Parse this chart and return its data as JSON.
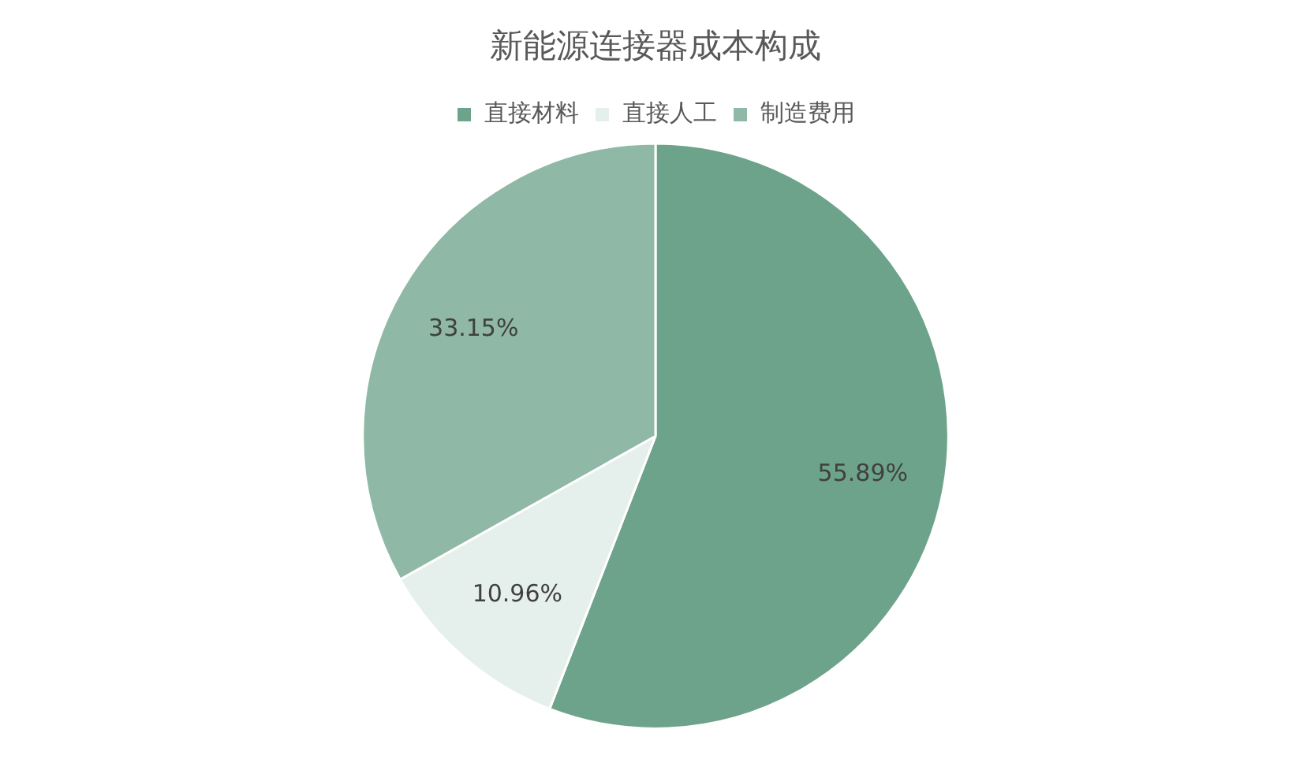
{
  "chart_data": {
    "type": "pie",
    "title": "新能源连接器成本构成",
    "categories": [
      "直接材料",
      "直接人工",
      "制造费用"
    ],
    "values": [
      55.89,
      10.96,
      33.15
    ],
    "colors": [
      "#6ea38b",
      "#e5efeb",
      "#8fb8a6"
    ],
    "value_labels": [
      "55.89%",
      "10.96%",
      "33.15%"
    ],
    "legend": "top"
  }
}
